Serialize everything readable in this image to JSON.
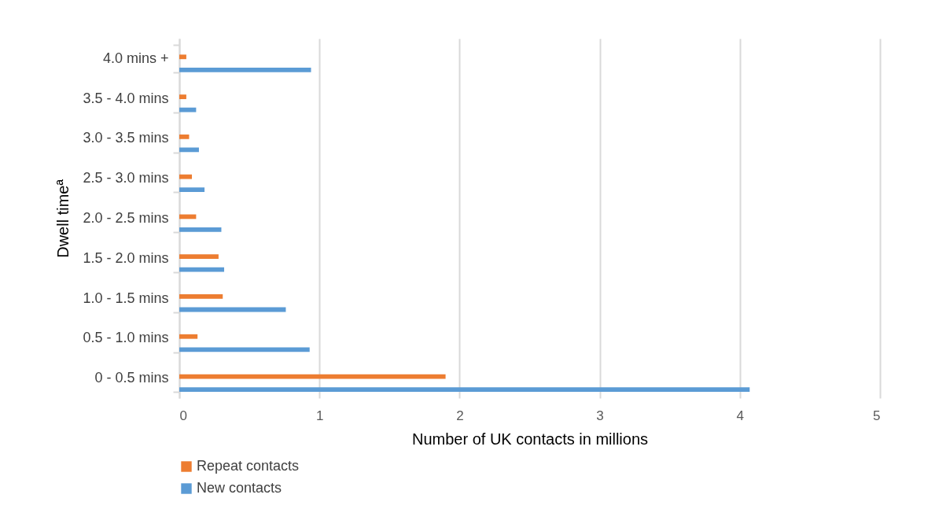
{
  "chart_data": {
    "type": "bar",
    "orientation": "horizontal",
    "xlabel": "Number of UK contacts in millions",
    "ylabel": "Dwell timeª",
    "categories": [
      "4.0 mins +",
      "3.5 - 4.0 mins",
      "3.0 - 3.5 mins",
      "2.5 - 3.0 mins",
      "2.0 - 2.5 mins",
      "1.5 - 2.0 mins",
      "1.0 - 1.5 mins",
      "0.5 - 1.0 mins",
      "0 - 0.5 mins"
    ],
    "series": [
      {
        "name": "Repeat contacts",
        "color": "#ed7d31",
        "values": [
          0.05,
          0.05,
          0.07,
          0.09,
          0.12,
          0.28,
          0.31,
          0.13,
          1.9
        ]
      },
      {
        "name": "New contacts",
        "color": "#5b9bd5",
        "values": [
          0.94,
          0.12,
          0.14,
          0.18,
          0.3,
          0.32,
          0.76,
          0.93,
          4.07
        ]
      }
    ],
    "xlim": [
      0,
      5
    ],
    "xticks": [
      0,
      1,
      2,
      3,
      4,
      5
    ],
    "grid": "x",
    "legend": "bottom"
  }
}
